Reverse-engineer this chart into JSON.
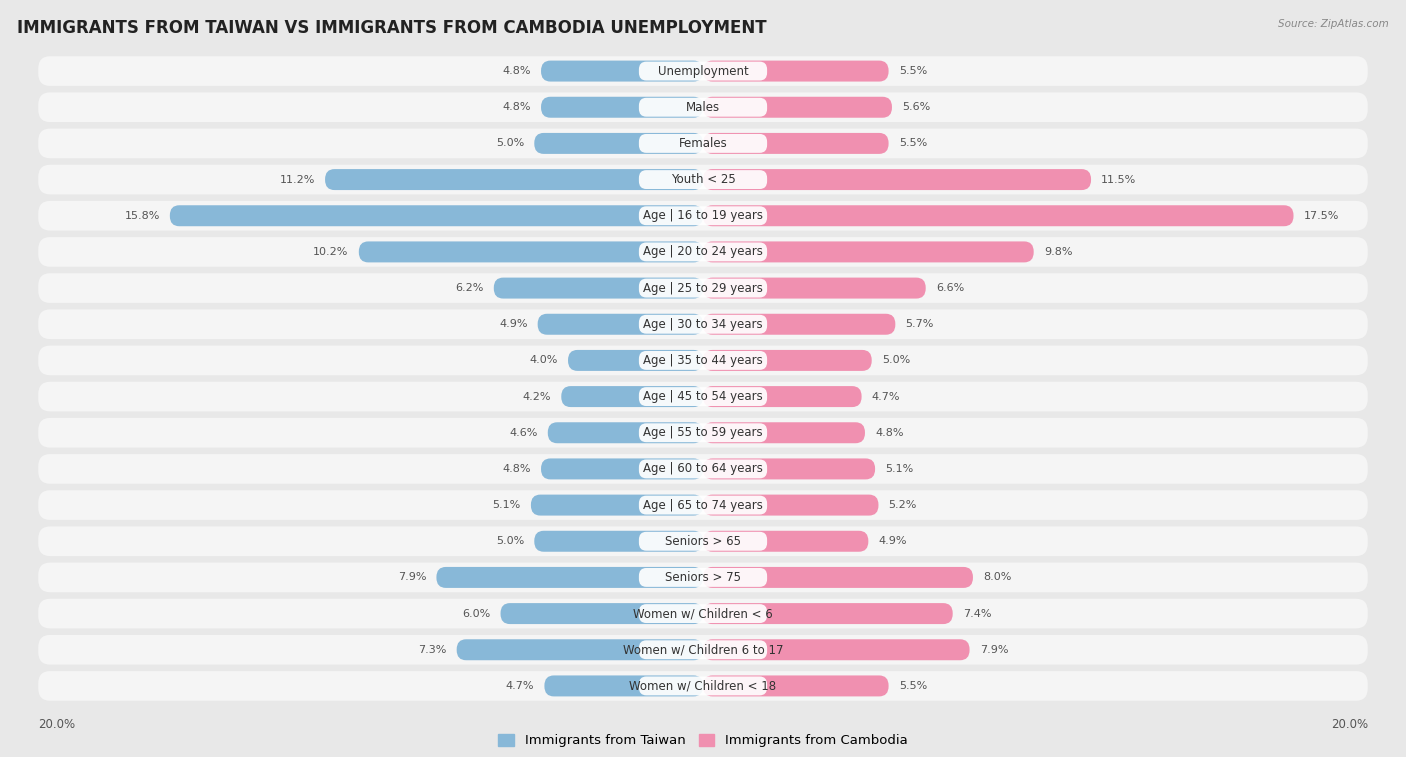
{
  "title": "IMMIGRANTS FROM TAIWAN VS IMMIGRANTS FROM CAMBODIA UNEMPLOYMENT",
  "source": "Source: ZipAtlas.com",
  "categories": [
    "Unemployment",
    "Males",
    "Females",
    "Youth < 25",
    "Age | 16 to 19 years",
    "Age | 20 to 24 years",
    "Age | 25 to 29 years",
    "Age | 30 to 34 years",
    "Age | 35 to 44 years",
    "Age | 45 to 54 years",
    "Age | 55 to 59 years",
    "Age | 60 to 64 years",
    "Age | 65 to 74 years",
    "Seniors > 65",
    "Seniors > 75",
    "Women w/ Children < 6",
    "Women w/ Children 6 to 17",
    "Women w/ Children < 18"
  ],
  "taiwan_values": [
    4.8,
    4.8,
    5.0,
    11.2,
    15.8,
    10.2,
    6.2,
    4.9,
    4.0,
    4.2,
    4.6,
    4.8,
    5.1,
    5.0,
    7.9,
    6.0,
    7.3,
    4.7
  ],
  "cambodia_values": [
    5.5,
    5.6,
    5.5,
    11.5,
    17.5,
    9.8,
    6.6,
    5.7,
    5.0,
    4.7,
    4.8,
    5.1,
    5.2,
    4.9,
    8.0,
    7.4,
    7.9,
    5.5
  ],
  "taiwan_color": "#88b8d8",
  "cambodia_color": "#f090b0",
  "taiwan_label": "Immigrants from Taiwan",
  "cambodia_label": "Immigrants from Cambodia",
  "max_value": 20.0,
  "background_color": "#e8e8e8",
  "row_bg_color": "#f5f5f5",
  "bar_bg_color": "#dcdcdc",
  "label_bg_color": "#ffffff",
  "title_fontsize": 12,
  "label_fontsize": 8.5,
  "value_fontsize": 8.0
}
